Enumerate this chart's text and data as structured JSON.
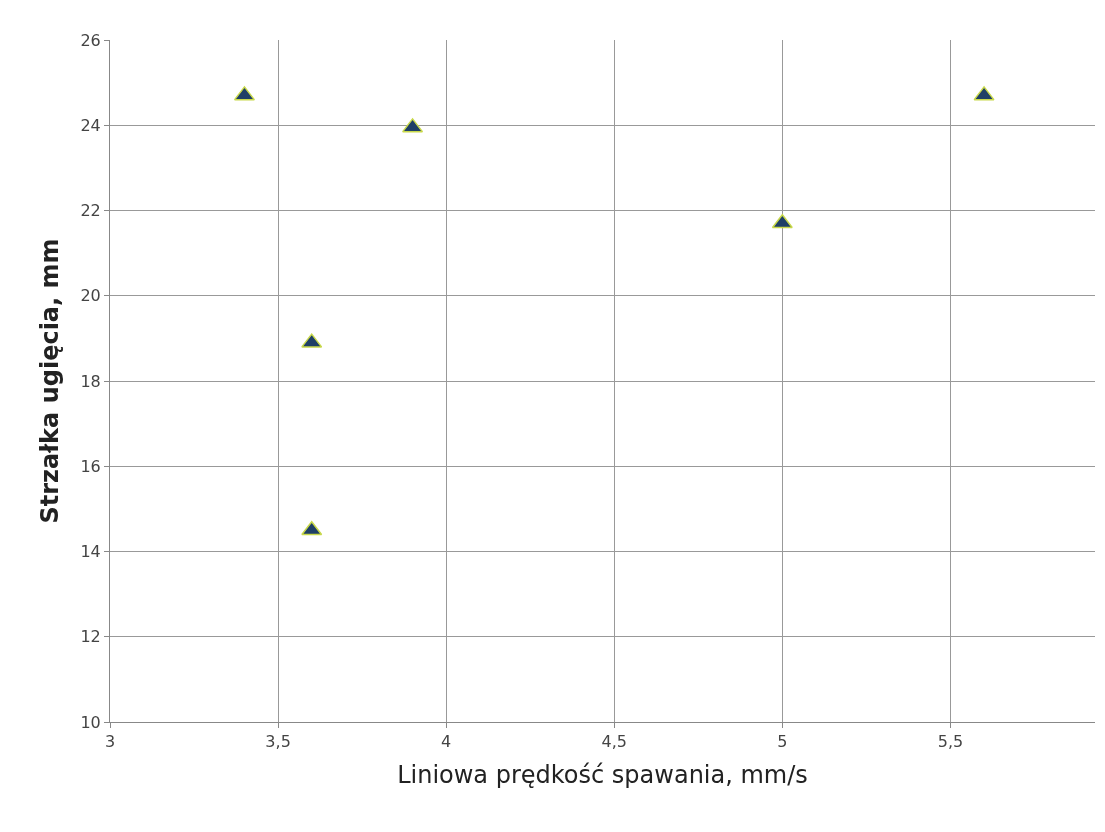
{
  "chart_data": {
    "type": "scatter",
    "xlabel": "Liniowa prędkość spawania, mm/s",
    "ylabel": "Strzałka ugięcia, mm",
    "x": [
      3.4,
      3.6,
      3.6,
      3.9,
      5.0,
      5.6
    ],
    "values": [
      24.7,
      18.9,
      14.5,
      23.95,
      21.7,
      24.7
    ],
    "color": "#1f3f66",
    "marker": "triangle",
    "xlim": [
      3,
      5.93
    ],
    "xticks": [
      {
        "value": 3,
        "label": "3"
      },
      {
        "value": 3.5,
        "label": "3,5"
      },
      {
        "value": 4,
        "label": "4"
      },
      {
        "value": 4.5,
        "label": "4,5"
      },
      {
        "value": 5,
        "label": "5"
      },
      {
        "value": 5.5,
        "label": "5,5"
      }
    ],
    "ylim": [
      10,
      26
    ],
    "yticks": [
      10,
      12,
      14,
      16,
      18,
      20,
      22,
      24,
      26
    ],
    "grid": true
  }
}
